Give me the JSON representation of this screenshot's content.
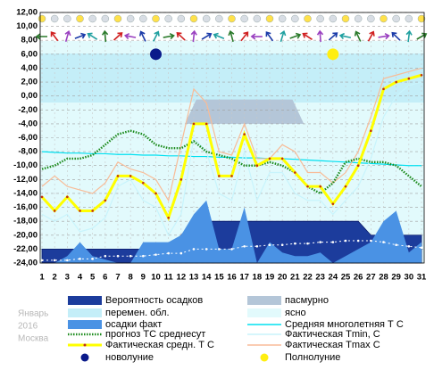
{
  "chart_data": {
    "type": "line",
    "x": [
      1,
      2,
      3,
      4,
      5,
      6,
      7,
      8,
      9,
      10,
      11,
      12,
      13,
      14,
      15,
      16,
      17,
      18,
      19,
      20,
      21,
      22,
      23,
      24,
      25,
      26,
      27,
      28,
      29,
      30,
      31
    ],
    "xlim": [
      1,
      31
    ],
    "ylim": [
      -24,
      12
    ],
    "yticks": [
      {
        "value": 12,
        "label": "12,00"
      },
      {
        "value": 10,
        "label": "10,00"
      },
      {
        "value": 8,
        "label": "8,00"
      },
      {
        "value": 6,
        "label": "6,00"
      },
      {
        "value": 4,
        "label": "4,00"
      },
      {
        "value": 2,
        "label": "2,00"
      },
      {
        "value": 0,
        "label": "0,00"
      },
      {
        "value": -2,
        "label": "-2,00"
      },
      {
        "value": -4,
        "label": "-4,00"
      },
      {
        "value": -6,
        "label": "-6,00"
      },
      {
        "value": -8,
        "label": "-8,00"
      },
      {
        "value": -10,
        "label": "-10,00"
      },
      {
        "value": -12,
        "label": "-12,00"
      },
      {
        "value": -14,
        "label": "-14,00"
      },
      {
        "value": -16,
        "label": "-16,00"
      },
      {
        "value": -18,
        "label": "-18,00"
      },
      {
        "value": -20,
        "label": "-20,00"
      },
      {
        "value": -22,
        "label": "-22,00"
      },
      {
        "value": -24,
        "label": "-24,00"
      }
    ],
    "grid": true,
    "watermark": [
      "Январь",
      "2016",
      "Москва"
    ],
    "areas": [
      {
        "name": "Вероятность осадков",
        "color": "#1c3c9c",
        "values": [
          -22,
          -22,
          -22,
          -22,
          -22,
          -22,
          -22,
          -22,
          -22,
          -22,
          -22,
          -20,
          -18,
          -18,
          -18,
          -18,
          -18,
          -18,
          -18,
          -18,
          -18,
          -18,
          -18,
          -18,
          -18,
          -18,
          -20,
          -20,
          -20,
          -20,
          -20
        ]
      },
      {
        "name": "осадки факт",
        "color": "#4a92e4",
        "values": [
          -24,
          -24,
          -23,
          -21,
          -23,
          -23.5,
          -24,
          -24,
          -21,
          -21,
          -21,
          -20,
          -17,
          -15,
          -22,
          -22,
          -16,
          -24,
          -21,
          -22.5,
          -23,
          -23,
          -22.5,
          -24,
          -23,
          -22,
          -21,
          -18,
          -16.5,
          -22.5,
          -21
        ]
      }
    ],
    "bands": [
      {
        "name": "перемен. обл.",
        "color": "#c4eef8"
      },
      {
        "name": "пасмурно",
        "color": "#b4c6d8"
      },
      {
        "name": "ясно",
        "color": "#e2fafc"
      }
    ],
    "series": [
      {
        "color": "#ffffff",
        "style": "dots",
        "values": [
          -23.6,
          -23.6,
          -23.6,
          -23.4,
          -23.4,
          -23,
          -23,
          -23,
          -23,
          -22.8,
          -22.6,
          -22.6,
          -22,
          -22,
          -22,
          -22,
          -21.6,
          -21.6,
          -21.4,
          -21.4,
          -21.2,
          -21.2,
          -21,
          -21,
          -20.8,
          -20.8,
          -20.8,
          -21,
          -21.4,
          -21.6,
          -21.8
        ]
      },
      {
        "name": "Средняя многолетняя Т С",
        "color": "#00e0f0",
        "style": "line",
        "values": [
          -8,
          -8.1,
          -8.2,
          -8.2,
          -8.3,
          -8.3,
          -8.4,
          -8.4,
          -8.5,
          -8.5,
          -8.6,
          -8.6,
          -8.7,
          -8.7,
          -8.8,
          -8.8,
          -8.9,
          -8.9,
          -9,
          -9,
          -9.1,
          -9.2,
          -9.3,
          -9.4,
          -9.5,
          -9.6,
          -9.7,
          -9.8,
          -9.9,
          -10,
          -10
        ]
      },
      {
        "name": "Фактическая Tmin, C",
        "color": "#c8f4fc",
        "style": "line",
        "values": [
          -17,
          -18,
          -17,
          -19.5,
          -19,
          -17.5,
          -13,
          -12,
          -15,
          -16,
          -20,
          -17,
          -6,
          -8,
          -14,
          -15,
          -8,
          -15,
          -11,
          -11,
          -14,
          -15,
          -15,
          -17,
          -15,
          -13,
          -9,
          -3,
          0,
          1.5,
          2
        ]
      },
      {
        "name": "Фактическая Tmax C",
        "color": "#f8bc98",
        "style": "line",
        "values": [
          -13,
          -11.5,
          -13,
          -13.5,
          -14,
          -12.5,
          -9.5,
          -10.5,
          -11,
          -12,
          -15,
          -7,
          1,
          -1,
          -8,
          -8.5,
          -4,
          -9,
          -9,
          -7,
          -8,
          -11,
          -11,
          -12.5,
          -11,
          -8,
          -3,
          2.5,
          3,
          3.5,
          4
        ]
      },
      {
        "name": "прогноз ТС среднесут",
        "color": "#1a8a1a",
        "style": "dotted",
        "values": [
          -10.5,
          -10,
          -9,
          -9,
          -8.5,
          -7,
          -5.5,
          -5,
          -5.5,
          -7,
          -7.5,
          -7.5,
          -6.5,
          -8,
          -8.5,
          -9,
          -10,
          -10,
          -9.5,
          -10,
          -11,
          -13,
          -14,
          -12.5,
          -9.5,
          -9,
          -9.5,
          -9.5,
          -10,
          -11.5,
          -13
        ]
      },
      {
        "name": "Фактическая средн. Т С",
        "color": "#ffff00",
        "style": "thick",
        "values": [
          -14.5,
          -16.5,
          -14.5,
          -16.5,
          -16.5,
          -15,
          -11.5,
          -11.5,
          -12.5,
          -14,
          -17.5,
          -12,
          -4,
          -4,
          -11.5,
          -11.5,
          -5.5,
          -10,
          -9,
          -9,
          -11,
          -13,
          -13,
          -15.5,
          -13,
          -10,
          -5,
          1,
          2,
          2.5,
          3
        ]
      }
    ],
    "moons": [
      {
        "name": "новолуние",
        "color": "#0a1a8a",
        "x": 10,
        "y": 6
      },
      {
        "name": "Полнолуние",
        "color": "#ffee10",
        "x": 24,
        "y": 6
      }
    ]
  }
}
